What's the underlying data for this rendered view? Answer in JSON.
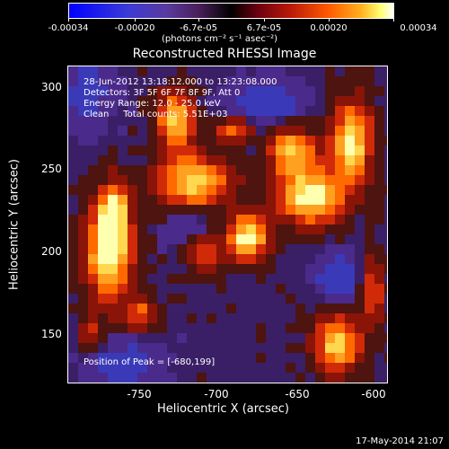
{
  "colorbar": {
    "tick_labels": [
      "-0.00034",
      "-0.00020",
      "-6.7e-05",
      "6.7e-05",
      "0.00020",
      "0.00034"
    ],
    "units": "(photons cm⁻² s⁻¹ asec⁻²)"
  },
  "title": "Reconstructed RHESSI Image",
  "info": {
    "time_range": "28-Jun-2012 13:18:12.000 to 13:23:08.000",
    "detectors": "Detectors: 3F 5F 6F 7F 8F 9F, Att 0",
    "energy_range": "Energy Range: 12.0 - 25.0 keV",
    "clean_counts": "Clean     Total counts: 5.51E+03",
    "peak_position": "Position of Peak = [-680,199]"
  },
  "axes": {
    "xlabel": "Heliocentric X (arcsec)",
    "ylabel": "Heliocentric Y (arcsec)",
    "x_ticks": [
      "-750",
      "-700",
      "-650",
      "-600"
    ],
    "y_ticks": [
      "300",
      "250",
      "200",
      "150"
    ]
  },
  "footer_date": "17-May-2014 21:07",
  "colors": {
    "background": "#000000",
    "negative": "#3b3bd6",
    "positive_hot": "#ffd040",
    "peak": "#ffffc0"
  }
}
